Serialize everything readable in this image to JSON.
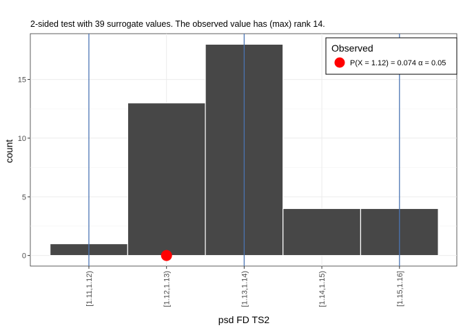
{
  "chart_data": {
    "type": "bar",
    "title": "2-sided test with 39 surrogate values. The observed value has (max) rank 14.",
    "xlabel": "psd FD TS2",
    "ylabel": "count",
    "categories": [
      "[1.11,1.12)",
      "[1.12,1.13)",
      "[1.13,1.14)",
      "[1.14,1.15)",
      "[1.15,1.16]"
    ],
    "values": [
      1,
      13,
      18,
      4,
      4
    ],
    "ylim": [
      -0.9,
      18.9
    ],
    "yticks": [
      0,
      5,
      10,
      15
    ],
    "grid": true,
    "bar_color": "#474747",
    "bar_outline_color": "#ffffff",
    "vlines": {
      "color": "#4a74b3",
      "positions": [
        1,
        3,
        5
      ]
    },
    "observed_point": {
      "category_index": 2,
      "y": 0,
      "color": "#ff0000"
    },
    "legend": {
      "title": "Observed",
      "entry": "P(X = 1.12) = 0.074  α = 0.05",
      "placement": "top-right"
    }
  }
}
